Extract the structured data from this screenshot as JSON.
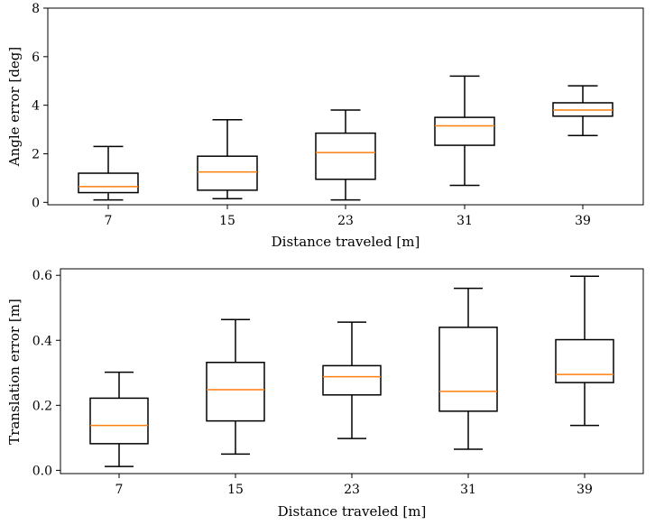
{
  "chart_data": [
    {
      "type": "box",
      "xlabel": "Distance traveled [m]",
      "ylabel": "Angle error [deg]",
      "categories": [
        "7",
        "15",
        "23",
        "31",
        "39"
      ],
      "ylim": [
        -0.1,
        8
      ],
      "yticks": [
        0,
        2,
        4,
        6,
        8
      ],
      "ytick_labels": [
        "0",
        "2",
        "4",
        "6",
        "8"
      ],
      "boxes": [
        {
          "whislo": 0.1,
          "q1": 0.4,
          "med": 0.65,
          "q3": 1.2,
          "whishi": 2.3
        },
        {
          "whislo": 0.15,
          "q1": 0.5,
          "med": 1.25,
          "q3": 1.9,
          "whishi": 3.4
        },
        {
          "whislo": 0.1,
          "q1": 0.95,
          "med": 2.05,
          "q3": 2.85,
          "whishi": 3.8
        },
        {
          "whislo": 0.7,
          "q1": 2.35,
          "med": 3.15,
          "q3": 3.5,
          "whishi": 5.2
        },
        {
          "whislo": 2.75,
          "q1": 3.55,
          "med": 3.8,
          "q3": 4.1,
          "whishi": 4.8
        }
      ]
    },
    {
      "type": "box",
      "xlabel": "Distance traveled [m]",
      "ylabel": "Translation error [m]",
      "categories": [
        "7",
        "15",
        "23",
        "31",
        "39"
      ],
      "ylim": [
        -0.01,
        0.62
      ],
      "yticks": [
        0.0,
        0.2,
        0.4,
        0.6
      ],
      "ytick_labels": [
        "0.0",
        "0.2",
        "0.4",
        "0.6"
      ],
      "boxes": [
        {
          "whislo": 0.012,
          "q1": 0.082,
          "med": 0.138,
          "q3": 0.222,
          "whishi": 0.302
        },
        {
          "whislo": 0.05,
          "q1": 0.152,
          "med": 0.248,
          "q3": 0.332,
          "whishi": 0.464
        },
        {
          "whislo": 0.098,
          "q1": 0.232,
          "med": 0.288,
          "q3": 0.322,
          "whishi": 0.456
        },
        {
          "whislo": 0.065,
          "q1": 0.182,
          "med": 0.243,
          "q3": 0.44,
          "whishi": 0.56
        },
        {
          "whislo": 0.138,
          "q1": 0.27,
          "med": 0.295,
          "q3": 0.402,
          "whishi": 0.597
        }
      ]
    }
  ],
  "colors": {
    "median": "#ff7f0e",
    "box": "#000000",
    "background": "#ffffff"
  }
}
